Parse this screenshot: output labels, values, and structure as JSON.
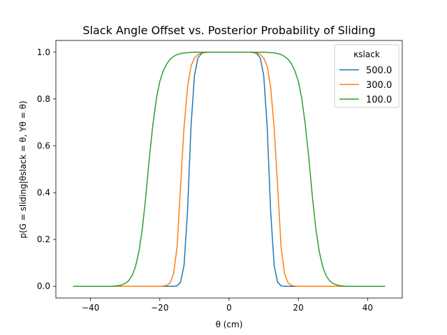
{
  "chart_data": {
    "type": "line",
    "title": "Slack Angle Offset vs. Posterior Probability of Sliding",
    "xlabel": "θ (cm)",
    "ylabel": "p(G = sliding|θslack = θ, Yθ = θ)",
    "xlim": [
      -50,
      50
    ],
    "ylim": [
      -0.05,
      1.05
    ],
    "xticks": [
      -40,
      -20,
      0,
      20,
      40
    ],
    "xtick_labels": [
      "−40",
      "−20",
      "0",
      "20",
      "40"
    ],
    "yticks": [
      0.0,
      0.2,
      0.4,
      0.6,
      0.8,
      1.0
    ],
    "ytick_labels": [
      "0.0",
      "0.2",
      "0.4",
      "0.6",
      "0.8",
      "1.0"
    ],
    "grid": false,
    "legend": {
      "title": "κslack",
      "location": "upper right"
    },
    "x": [
      -45,
      -44,
      -43,
      -42,
      -41,
      -40,
      -39,
      -38,
      -37,
      -36,
      -35,
      -34,
      -33,
      -32,
      -31,
      -30,
      -29,
      -28,
      -27,
      -26,
      -25,
      -24,
      -23,
      -22,
      -21,
      -20,
      -19,
      -18,
      -17,
      -16,
      -15,
      -14,
      -13,
      -12,
      -11,
      -10,
      -9,
      -8,
      -7,
      -6,
      -5,
      -4,
      -3,
      -2,
      -1,
      0,
      1,
      2,
      3,
      4,
      5,
      6,
      7,
      8,
      9,
      10,
      11,
      12,
      13,
      14,
      15,
      16,
      17,
      18,
      19,
      20,
      21,
      22,
      23,
      24,
      25,
      26,
      27,
      28,
      29,
      30,
      31,
      32,
      33,
      34,
      35,
      36,
      37,
      38,
      39,
      40,
      41,
      42,
      43,
      44,
      45
    ],
    "series": [
      {
        "name": "500.0",
        "color": "#1f77b4",
        "values": [
          0,
          0,
          0,
          0,
          0,
          0,
          0,
          0,
          0,
          0,
          0,
          0,
          0,
          0,
          0,
          0,
          0,
          0,
          0,
          0,
          0,
          0,
          0,
          0,
          0,
          0,
          0,
          0,
          0,
          0,
          0.002,
          0.018,
          0.09,
          0.32,
          0.68,
          0.9,
          0.975,
          0.994,
          0.999,
          1,
          1,
          1,
          1,
          1,
          1,
          1,
          1,
          1,
          1,
          1,
          1,
          1,
          0.999,
          0.994,
          0.975,
          0.9,
          0.68,
          0.32,
          0.09,
          0.018,
          0.002,
          0,
          0,
          0,
          0,
          0,
          0,
          0,
          0,
          0,
          0,
          0,
          0,
          0,
          0,
          0,
          0,
          0,
          0,
          0,
          0,
          0,
          0,
          0,
          0,
          0,
          0,
          0,
          0,
          0,
          0
        ]
      },
      {
        "name": "300.0",
        "color": "#ff7f0e",
        "values": [
          0,
          0,
          0,
          0,
          0,
          0,
          0,
          0,
          0,
          0,
          0,
          0,
          0,
          0,
          0,
          0,
          0,
          0,
          0,
          0,
          0,
          0,
          0,
          0,
          0,
          0,
          0.001,
          0.004,
          0.015,
          0.055,
          0.17,
          0.43,
          0.68,
          0.85,
          0.94,
          0.975,
          0.99,
          0.997,
          0.999,
          1,
          1,
          1,
          1,
          1,
          1,
          1,
          1,
          1,
          1,
          1,
          1,
          1,
          0.999,
          0.997,
          0.99,
          0.975,
          0.94,
          0.85,
          0.68,
          0.43,
          0.17,
          0.055,
          0.015,
          0.004,
          0.001,
          0,
          0,
          0,
          0,
          0,
          0,
          0,
          0,
          0,
          0,
          0,
          0,
          0,
          0,
          0,
          0,
          0,
          0,
          0,
          0,
          0,
          0,
          0,
          0,
          0,
          0
        ]
      },
      {
        "name": "100.0",
        "color": "#2ca02c",
        "values": [
          0,
          0,
          0,
          0,
          0,
          0,
          0,
          0,
          0,
          0,
          0,
          0,
          0.001,
          0.003,
          0.006,
          0.012,
          0.024,
          0.045,
          0.085,
          0.15,
          0.25,
          0.39,
          0.55,
          0.69,
          0.8,
          0.875,
          0.92,
          0.95,
          0.97,
          0.982,
          0.99,
          0.994,
          0.997,
          0.998,
          0.999,
          1,
          1,
          1,
          1,
          1,
          1,
          1,
          1,
          1,
          1,
          1,
          1,
          1,
          1,
          1,
          1,
          1,
          1,
          1,
          1,
          1,
          0.999,
          0.998,
          0.997,
          0.994,
          0.99,
          0.982,
          0.97,
          0.95,
          0.92,
          0.875,
          0.8,
          0.69,
          0.55,
          0.39,
          0.25,
          0.15,
          0.085,
          0.045,
          0.024,
          0.012,
          0.006,
          0.003,
          0.001,
          0,
          0,
          0,
          0,
          0,
          0,
          0,
          0,
          0,
          0,
          0,
          0
        ]
      }
    ]
  }
}
